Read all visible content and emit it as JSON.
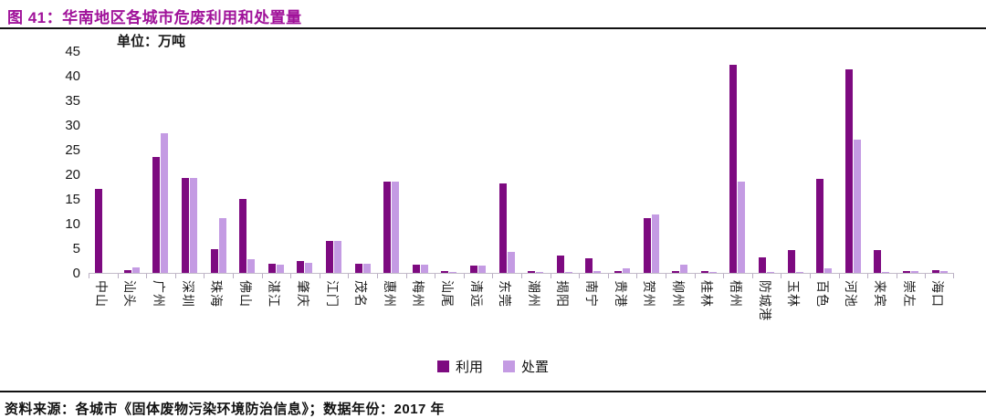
{
  "figure": {
    "title": "图 41：华南地区各城市危废利用和处置量",
    "unit_label": "单位：万吨",
    "source_note": "资料来源：各城市《固体废物污染环境防治信息》；数据年份：2017 年"
  },
  "colors": {
    "title": "#A0129A",
    "series_use": "#7D0A80",
    "series_dispose": "#C49BE3",
    "axis_line": "#c3bac9",
    "text": "#1a1a1a"
  },
  "chart_data": {
    "type": "bar",
    "title": "华南地区各城市危废利用和处置量",
    "unit": "万吨",
    "categories": [
      "中山",
      "汕头",
      "广州",
      "深圳",
      "珠海",
      "佛山",
      "湛江",
      "肇庆",
      "江门",
      "茂名",
      "惠州",
      "梅州",
      "汕尾",
      "清远",
      "东莞",
      "潮州",
      "揭阳",
      "南宁",
      "贵港",
      "贺州",
      "柳州",
      "桂林",
      "梧州",
      "防城港",
      "玉林",
      "百色",
      "河池",
      "来宾",
      "崇左",
      "海口"
    ],
    "series": [
      {
        "name": "利用",
        "color_key": "series_use",
        "values": [
          17,
          0.5,
          23.5,
          19.3,
          4.8,
          15,
          1.9,
          2.4,
          6.5,
          1.8,
          18.5,
          1.6,
          0.3,
          1.4,
          18.2,
          0.3,
          3.6,
          2.9,
          0.4,
          11.2,
          0.4,
          0.3,
          42.2,
          3.1,
          4.7,
          19,
          41.3,
          4.6,
          0.3,
          0.6
        ]
      },
      {
        "name": "处置",
        "color_key": "series_dispose",
        "values": [
          0,
          1.2,
          28.3,
          19.3,
          11.2,
          2.8,
          1.7,
          2,
          6.5,
          1.8,
          18.5,
          1.7,
          0.2,
          1.4,
          4.2,
          0.2,
          0.2,
          0.4,
          0.9,
          11.9,
          1.6,
          0.2,
          18.6,
          0.15,
          0.15,
          1,
          27.1,
          0.2,
          0.3,
          0.4
        ]
      }
    ],
    "ylabel": "",
    "xlabel": "",
    "ylim": [
      0,
      45
    ],
    "ytick_step": 5,
    "grid": false,
    "legend_position": "bottom"
  }
}
